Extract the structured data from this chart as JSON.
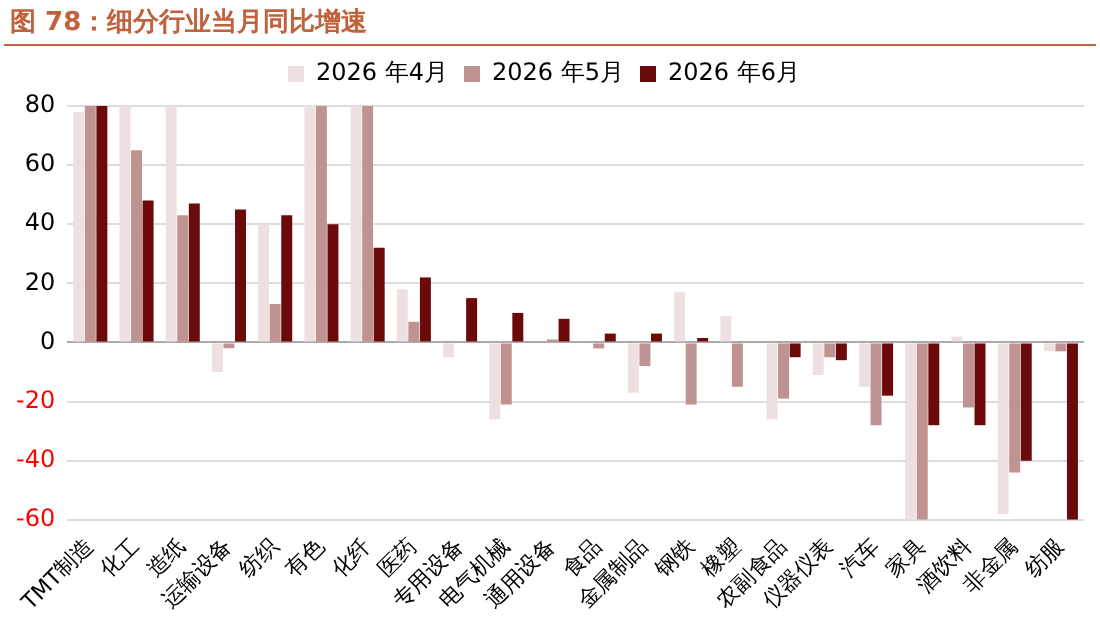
{
  "chart_data": {
    "type": "bar",
    "title": "图 78：细分行业当月同比增速",
    "categories": [
      "TMT制造",
      "化工",
      "造纸",
      "运输设备",
      "纺织",
      "有色",
      "化纤",
      "医药",
      "专用设备",
      "电气机械",
      "通用设备",
      "食品",
      "金属制品",
      "钢铁",
      "橡塑",
      "农副食品",
      "仪器仪表",
      "汽车",
      "家具",
      "酒饮料",
      "非金属",
      "纺服"
    ],
    "series": [
      {
        "name": "2026 年4月",
        "color": "#eee0e0",
        "values": [
          78,
          80,
          80,
          -10,
          40,
          80,
          80,
          18,
          -5,
          -26,
          null,
          null,
          -17,
          17,
          9,
          -26,
          -11,
          -15,
          -60,
          2,
          -58,
          -3
        ]
      },
      {
        "name": "2026 年5月",
        "color": "#c09393",
        "values": [
          80,
          65,
          43,
          -2,
          13,
          80,
          80,
          7,
          0,
          -21,
          1,
          -2,
          -8,
          -21,
          -15,
          -19,
          -5,
          -28,
          -60,
          -22,
          -44,
          -3
        ]
      },
      {
        "name": "2026 年6月",
        "color": "#6b0a0a",
        "values": [
          80,
          48,
          47,
          45,
          43,
          40,
          32,
          22,
          15,
          10,
          8,
          3,
          3,
          1.5,
          null,
          -5,
          -6,
          -18,
          -28,
          -28,
          -40,
          -60
        ]
      }
    ],
    "ylim": [
      -60,
      80
    ],
    "yticks": [
      -60,
      -40,
      -20,
      0,
      20,
      40,
      60,
      80
    ],
    "grid": "y",
    "legend": "top"
  }
}
